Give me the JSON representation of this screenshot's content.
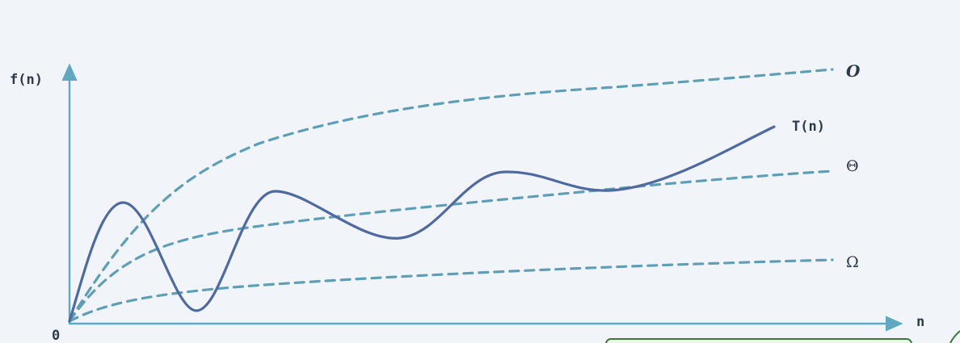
{
  "labels": {
    "y_axis": "f(n)",
    "x_axis": "n",
    "origin": "0",
    "curve_o": "O",
    "curve_t": "T(n)",
    "curve_theta": "Θ",
    "curve_omega": "Ω"
  },
  "colors": {
    "background": "#f1f5fa",
    "axis": "#5fa8c2",
    "dashed_bounds": "#5e9fb5",
    "t_curve": "#4f6aa0",
    "label_text": "#2d3a4a",
    "corner_box_border": "#3d7a3a",
    "corner_box_fill": "#eef6ec"
  }
}
